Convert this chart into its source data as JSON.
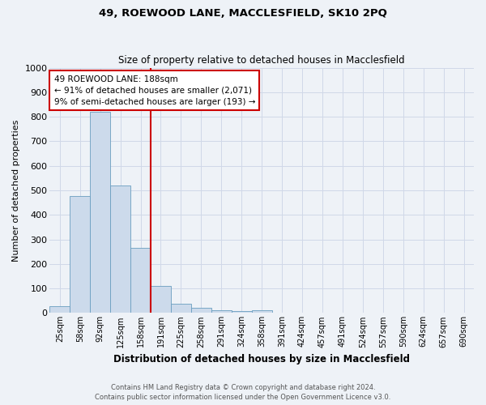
{
  "title_line1": "49, ROEWOOD LANE, MACCLESFIELD, SK10 2PQ",
  "title_line2": "Size of property relative to detached houses in Macclesfield",
  "xlabel": "Distribution of detached houses by size in Macclesfield",
  "ylabel": "Number of detached properties",
  "categories": [
    "25sqm",
    "58sqm",
    "92sqm",
    "125sqm",
    "158sqm",
    "191sqm",
    "225sqm",
    "258sqm",
    "291sqm",
    "324sqm",
    "358sqm",
    "391sqm",
    "424sqm",
    "457sqm",
    "491sqm",
    "524sqm",
    "557sqm",
    "590sqm",
    "624sqm",
    "657sqm",
    "690sqm"
  ],
  "values": [
    28,
    478,
    820,
    520,
    265,
    110,
    38,
    22,
    10,
    7,
    10,
    0,
    0,
    0,
    0,
    0,
    0,
    0,
    0,
    0,
    0
  ],
  "bar_color": "#ccdaeb",
  "bar_edge_color": "#6a9ec0",
  "ylim": [
    0,
    1000
  ],
  "yticks": [
    0,
    100,
    200,
    300,
    400,
    500,
    600,
    700,
    800,
    900,
    1000
  ],
  "vline_x": 4.5,
  "vline_color": "#cc0000",
  "annotation_text": "49 ROEWOOD LANE: 188sqm\n← 91% of detached houses are smaller (2,071)\n9% of semi-detached houses are larger (193) →",
  "annotation_box_color": "#ffffff",
  "annotation_box_edge": "#cc0000",
  "footnote_line1": "Contains HM Land Registry data © Crown copyright and database right 2024.",
  "footnote_line2": "Contains public sector information licensed under the Open Government Licence v3.0.",
  "grid_color": "#d0d8e8",
  "plot_bg_color": "#eef2f7",
  "fig_bg_color": "#eef2f7"
}
